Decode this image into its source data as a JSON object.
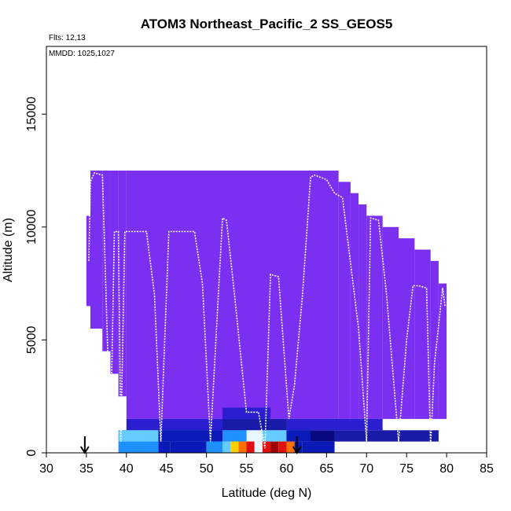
{
  "chart_data": {
    "type": "heatmap",
    "title": "ATOM3 Northeast_Pacific_2 SS_GEOS5",
    "annotations": {
      "flights": "Flts: 12,13",
      "dates": "MMDD: 1025,1027"
    },
    "xlabel": "Latitude (deg N)",
    "ylabel": "Altitude (m)",
    "xlim": [
      30,
      85
    ],
    "ylim": [
      0,
      18000
    ],
    "x_ticks": [
      30,
      35,
      40,
      45,
      50,
      55,
      60,
      65,
      70,
      75,
      80,
      85
    ],
    "y_ticks": [
      0,
      5000,
      10000,
      15000
    ],
    "colors": {
      "background_field": "#7b2ff0",
      "low_levels": [
        "#2a1fd0",
        "#1a1aa8",
        "#0a0a80",
        "#000080"
      ],
      "surface_scale": [
        "#0a1ab8",
        "#1e90ff",
        "#66ccff",
        "#e8f6ff",
        "#ffd000",
        "#ff7000",
        "#e01010",
        "#a00000"
      ],
      "flight_track": "#ffffff",
      "marker_arrows": "#000000"
    },
    "curtain_columns": [
      {
        "lat": [
          35.0,
          35.5
        ],
        "top": 10500,
        "bottom": 6500
      },
      {
        "lat": [
          35.5,
          37.0
        ],
        "top": 12500,
        "bottom": 5500
      },
      {
        "lat": [
          37.0,
          38.0
        ],
        "top": 12500,
        "bottom": 4500
      },
      {
        "lat": [
          38.0,
          39.0
        ],
        "top": 12500,
        "bottom": 3500
      },
      {
        "lat": [
          39.0,
          40.0
        ],
        "top": 12500,
        "bottom": 2500
      },
      {
        "lat": [
          40.0,
          66.5
        ],
        "top": 12500,
        "bottom": 1500
      },
      {
        "lat": [
          66.5,
          68.0
        ],
        "top": 12000,
        "bottom": 1500
      },
      {
        "lat": [
          68.0,
          69.0
        ],
        "top": 11500,
        "bottom": 1500
      },
      {
        "lat": [
          69.0,
          70.0
        ],
        "top": 11000,
        "bottom": 1500
      },
      {
        "lat": [
          70.0,
          72.0
        ],
        "top": 10500,
        "bottom": 1500
      },
      {
        "lat": [
          72.0,
          74.0
        ],
        "top": 10000,
        "bottom": 1500
      },
      {
        "lat": [
          74.0,
          76.0
        ],
        "top": 9500,
        "bottom": 1500
      },
      {
        "lat": [
          76.0,
          78.0
        ],
        "top": 9000,
        "bottom": 1500
      },
      {
        "lat": [
          78.0,
          79.0
        ],
        "top": 8500,
        "bottom": 1500
      },
      {
        "lat": [
          79.0,
          80.0
        ],
        "top": 7500,
        "bottom": 1500
      }
    ],
    "low_level_cells": [
      {
        "lat": [
          39.0,
          40.0
        ],
        "alt": [
          500,
          1000
        ],
        "level": 1
      },
      {
        "lat": [
          40.0,
          48.0
        ],
        "alt": [
          500,
          1000
        ],
        "level": 3
      },
      {
        "lat": [
          48.0,
          58.0
        ],
        "alt": [
          500,
          1000
        ],
        "level": 3
      },
      {
        "lat": [
          58.0,
          66.0
        ],
        "alt": [
          500,
          1000
        ],
        "level": 2
      },
      {
        "lat": [
          66.0,
          79.0
        ],
        "alt": [
          500,
          1000
        ],
        "level": 1
      },
      {
        "lat": [
          40.0,
          52.0
        ],
        "alt": [
          1000,
          1500
        ],
        "level": 0
      },
      {
        "lat": [
          52.0,
          60.0
        ],
        "alt": [
          1000,
          1500
        ],
        "level": 1
      },
      {
        "lat": [
          60.0,
          72.0
        ],
        "alt": [
          1000,
          1500
        ],
        "level": 0
      },
      {
        "lat": [
          52.0,
          58.0
        ],
        "alt": [
          1500,
          2000
        ],
        "level": 0
      }
    ],
    "surface_cells": [
      {
        "lat": [
          39.0,
          44.0
        ],
        "level": 1
      },
      {
        "lat": [
          44.0,
          45.5
        ],
        "level": 0
      },
      {
        "lat": [
          45.5,
          50.0
        ],
        "level": 0
      },
      {
        "lat": [
          50.0,
          52.0
        ],
        "level": 1
      },
      {
        "lat": [
          52.0,
          53.0
        ],
        "level": 2
      },
      {
        "lat": [
          53.0,
          54.0
        ],
        "level": 4
      },
      {
        "lat": [
          54.0,
          55.0
        ],
        "level": 5
      },
      {
        "lat": [
          55.0,
          56.0
        ],
        "level": 6
      },
      {
        "lat": [
          56.0,
          57.0
        ],
        "level": 3
      },
      {
        "lat": [
          57.0,
          58.0
        ],
        "level": 6
      },
      {
        "lat": [
          58.0,
          59.0
        ],
        "level": 7
      },
      {
        "lat": [
          59.0,
          60.0
        ],
        "level": 6
      },
      {
        "lat": [
          60.0,
          61.0
        ],
        "level": 5
      },
      {
        "lat": [
          61.0,
          62.0
        ],
        "level": 0
      },
      {
        "lat": [
          62.0,
          66.0
        ],
        "level": 0
      }
    ],
    "surface_mid_cells": [
      {
        "lat": [
          39.0,
          44.0
        ],
        "level": 2
      },
      {
        "lat": [
          44.0,
          52.0
        ],
        "level": 0
      },
      {
        "lat": [
          52.0,
          55.0
        ],
        "level": 1
      },
      {
        "lat": [
          55.0,
          57.0
        ],
        "level": 3
      },
      {
        "lat": [
          57.0,
          60.0
        ],
        "level": 2
      },
      {
        "lat": [
          60.0,
          63.0
        ],
        "level": 0
      }
    ],
    "flight_track": {
      "lat": [
        35.3,
        35.5,
        36.0,
        37.0,
        38.0,
        38.5,
        39.0,
        39.3,
        39.8,
        40.3,
        40.5,
        42.5,
        43.5,
        44.3,
        45.3,
        46.0,
        48.5,
        49.5,
        50.5,
        52.0,
        52.5,
        53.5,
        55.0,
        56.5,
        57.3,
        58.0,
        59.0,
        60.3,
        61.0,
        62.0,
        63.0,
        63.5,
        65.0,
        66.0,
        67.0,
        69.0,
        70.0,
        70.5,
        71.5,
        72.5,
        74.0,
        75.0,
        75.8,
        76.5,
        77.5,
        78.0,
        78.5,
        79.5,
        79.8
      ],
      "alt": [
        8500,
        12000,
        12400,
        12300,
        500,
        9800,
        9800,
        500,
        9800,
        9800,
        9800,
        9800,
        7000,
        500,
        9800,
        9800,
        9800,
        7500,
        500,
        10400,
        10300,
        7000,
        1800,
        1800,
        200,
        7900,
        7800,
        1500,
        3000,
        7000,
        12200,
        12300,
        12100,
        11500,
        11300,
        5500,
        500,
        10400,
        10300,
        7000,
        500,
        5000,
        7400,
        7400,
        7300,
        300,
        4000,
        7300,
        6500
      ]
    },
    "markers": {
      "arrow_lats": [
        34.8,
        61.3
      ]
    },
    "grid": false,
    "legend": "none"
  }
}
